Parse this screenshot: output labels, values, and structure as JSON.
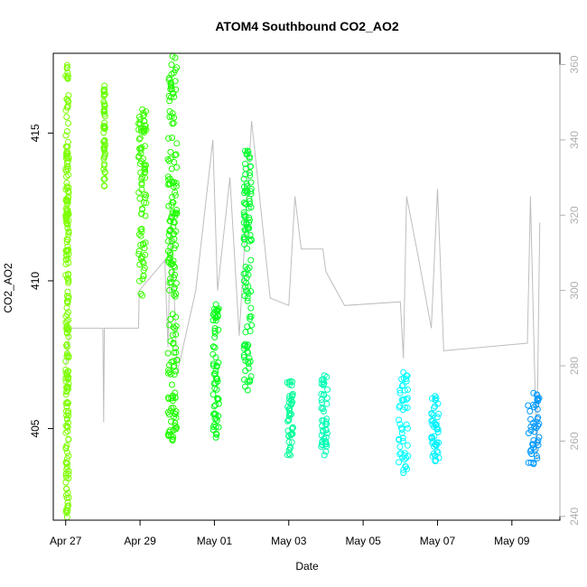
{
  "chart_data": {
    "type": "scatter",
    "title": "ATOM4 Southbound CO2_AO2",
    "xlabel": "Date",
    "ylabel": "CO2_AO2",
    "x_axis": {
      "range": [
        "2017-04-26T16:00",
        "2017-05-10T07:00"
      ],
      "ticks": [
        {
          "date": "2017-04-27",
          "label": "Apr 27"
        },
        {
          "date": "2017-04-29",
          "label": "Apr 29"
        },
        {
          "date": "2017-05-01",
          "label": "May 01"
        },
        {
          "date": "2017-05-03",
          "label": "May 03"
        },
        {
          "date": "2017-05-05",
          "label": "May 05"
        },
        {
          "date": "2017-05-07",
          "label": "May 07"
        },
        {
          "date": "2017-05-09",
          "label": "May 09"
        }
      ]
    },
    "y_left": {
      "range": [
        401.9,
        417.7
      ],
      "ticks": [
        405,
        410,
        415
      ]
    },
    "y_right": {
      "range": [
        239,
        363
      ],
      "ticks": [
        240,
        260,
        280,
        300,
        320,
        340,
        360
      ],
      "color": "#b0b0b0"
    },
    "series": [
      {
        "marker": "open-circle",
        "color_scale": "green-to-blue by date",
        "clusters": [
          {
            "t_start": "2017-04-27T00:00",
            "t_end": "2017-04-27T02:00",
            "y_min": 402.0,
            "y_max": 417.3,
            "color": "#7dff00"
          },
          {
            "t_start": "2017-04-28T00:30",
            "t_end": "2017-04-28T01:30",
            "y_min": 413.2,
            "y_max": 416.6,
            "color": "#66ff00"
          },
          {
            "t_start": "2017-04-28T23:00",
            "t_end": "2017-04-29T04:00",
            "y_min": 409.5,
            "y_max": 415.8,
            "color": "#3dff00"
          },
          {
            "t_start": "2017-04-29T18:00",
            "t_end": "2017-04-30T00:00",
            "y_min": 404.6,
            "y_max": 417.6,
            "color": "#22ff00"
          },
          {
            "t_start": "2017-04-30T23:00",
            "t_end": "2017-05-01T03:00",
            "y_min": 404.7,
            "y_max": 409.2,
            "color": "#00ff14"
          },
          {
            "t_start": "2017-05-01T19:00",
            "t_end": "2017-05-02T00:00",
            "y_min": 406.3,
            "y_max": 414.4,
            "color": "#00ff2c"
          },
          {
            "t_start": "2017-05-02T23:00",
            "t_end": "2017-05-03T03:00",
            "y_min": 404.1,
            "y_max": 406.6,
            "color": "#00ff99"
          },
          {
            "t_start": "2017-05-03T21:00",
            "t_end": "2017-05-04T01:00",
            "y_min": 404.1,
            "y_max": 406.8,
            "color": "#00ffb5"
          },
          {
            "t_start": "2017-05-05T23:00",
            "t_end": "2017-05-06T05:00",
            "y_min": 403.5,
            "y_max": 406.9,
            "color": "#00ffff"
          },
          {
            "t_start": "2017-05-06T20:00",
            "t_end": "2017-05-07T01:00",
            "y_min": 403.9,
            "y_max": 406.1,
            "color": "#00f2ff"
          },
          {
            "t_start": "2017-05-09T10:00",
            "t_end": "2017-05-09T18:00",
            "y_min": 403.8,
            "y_max": 406.2,
            "color": "#0099ff"
          }
        ]
      },
      {
        "axis": "right",
        "line": "grey",
        "color": "#bebebe",
        "points": [
          [
            "2017-04-27T00:00",
            280
          ],
          [
            "2017-04-27T03:00",
            290
          ],
          [
            "2017-04-28T00:00",
            290
          ],
          [
            "2017-04-28T00:30",
            265
          ],
          [
            "2017-04-28T01:00",
            290
          ],
          [
            "2017-04-28T23:00",
            290
          ],
          [
            "2017-04-28T23:30",
            300
          ],
          [
            "2017-04-29T16:00",
            308
          ],
          [
            "2017-04-29T18:00",
            285
          ],
          [
            "2017-04-29T20:00",
            320
          ],
          [
            "2017-04-30T00:00",
            278
          ],
          [
            "2017-04-30T12:00",
            300
          ],
          [
            "2017-04-30T23:00",
            340
          ],
          [
            "2017-05-01T02:00",
            300
          ],
          [
            "2017-05-01T10:00",
            330
          ],
          [
            "2017-05-01T16:00",
            288
          ],
          [
            "2017-05-02T00:00",
            345
          ],
          [
            "2017-05-02T12:00",
            298
          ],
          [
            "2017-05-03T00:00",
            296
          ],
          [
            "2017-05-03T04:00",
            325
          ],
          [
            "2017-05-03T08:00",
            311
          ],
          [
            "2017-05-03T22:00",
            311
          ],
          [
            "2017-05-04T00:00",
            305
          ],
          [
            "2017-05-04T12:00",
            296
          ],
          [
            "2017-05-06T00:00",
            297
          ],
          [
            "2017-05-06T02:00",
            282
          ],
          [
            "2017-05-06T04:00",
            325
          ],
          [
            "2017-05-06T12:00",
            308
          ],
          [
            "2017-05-06T20:00",
            290
          ],
          [
            "2017-05-07T00:00",
            327
          ],
          [
            "2017-05-07T04:00",
            284
          ],
          [
            "2017-05-09T10:00",
            286
          ],
          [
            "2017-05-09T12:00",
            325
          ],
          [
            "2017-05-09T16:00",
            255
          ],
          [
            "2017-05-09T18:00",
            318
          ]
        ]
      }
    ],
    "grid": false,
    "legend": "none"
  }
}
